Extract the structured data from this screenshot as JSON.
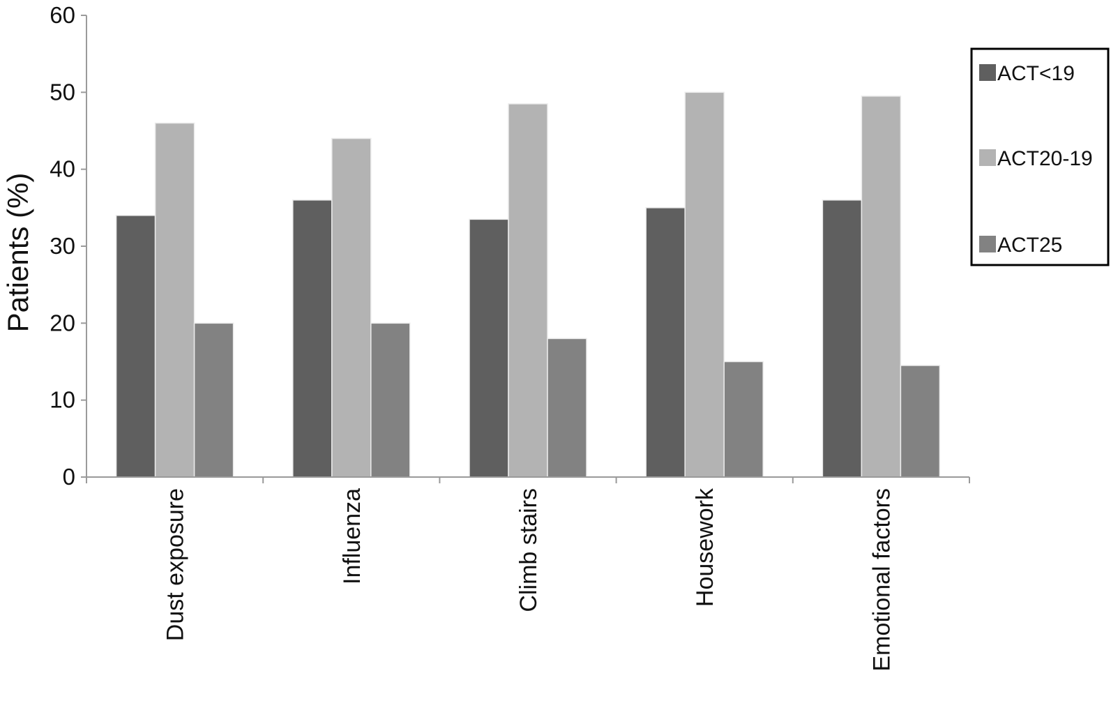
{
  "chart_data": {
    "type": "bar",
    "title": "",
    "xlabel": "",
    "ylabel": "Patients (%)",
    "ylim": [
      0,
      60
    ],
    "yticks": [
      0,
      10,
      20,
      30,
      40,
      50,
      60
    ],
    "grid": false,
    "legend_position": "right",
    "categories": [
      "Dust exposure",
      "Influenza",
      "Climb stairs",
      "Housework",
      "Emotional factors"
    ],
    "series": [
      {
        "name": "ACT<19",
        "color": "#5f5f5f",
        "values": [
          34,
          36,
          33.5,
          35,
          36
        ]
      },
      {
        "name": "ACT20-19",
        "color": "#b3b3b3",
        "values": [
          46,
          44,
          48.5,
          50,
          49.5
        ]
      },
      {
        "name": "ACT25",
        "color": "#828282",
        "values": [
          20,
          20,
          18,
          15,
          14.5
        ]
      }
    ]
  }
}
